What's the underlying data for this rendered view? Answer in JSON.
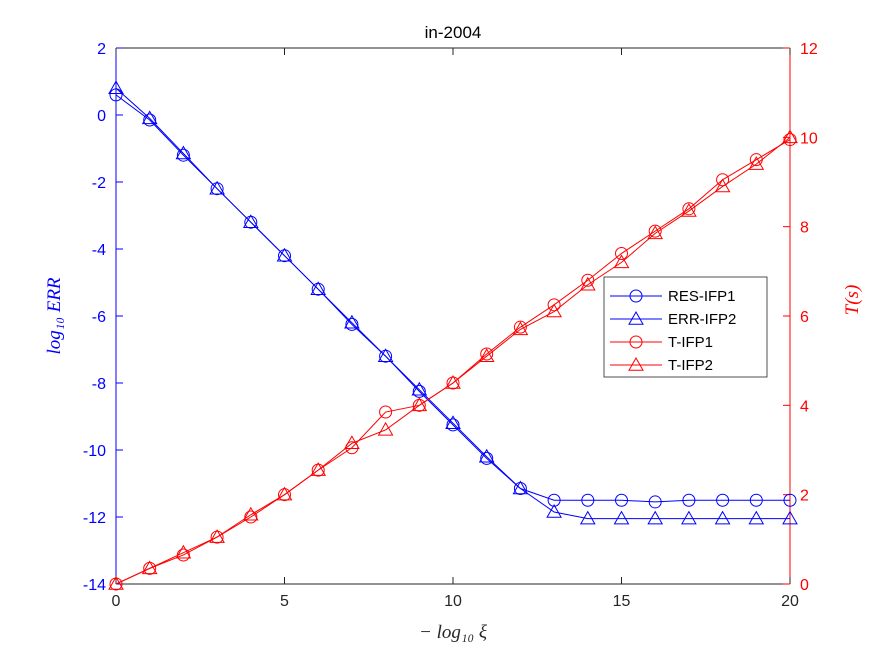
{
  "chart_data": {
    "type": "line",
    "title": "in-2004",
    "xlabel": "− log₁₀ ξ",
    "ylabel_left": "log₁₀ ERR",
    "ylabel_right": "T(s)",
    "xlim": [
      0,
      20
    ],
    "ylim_left": [
      -14,
      2
    ],
    "ylim_right": [
      0,
      12
    ],
    "x_ticks": [
      "0",
      "5",
      "10",
      "15",
      "20"
    ],
    "y_ticks_left": [
      "2",
      "0",
      "-2",
      "-4",
      "-6",
      "-8",
      "-10",
      "-12",
      "-14"
    ],
    "y_ticks_right": [
      "12",
      "10",
      "8",
      "6",
      "4",
      "2",
      "0"
    ],
    "left_axis_color": "#0000ff",
    "right_axis_color": "#ff0000",
    "grid": false,
    "legend_position": "right",
    "x": [
      0,
      1,
      2,
      3,
      4,
      5,
      6,
      7,
      8,
      9,
      10,
      11,
      12,
      13,
      14,
      15,
      16,
      17,
      18,
      19,
      20
    ],
    "series": [
      {
        "name": "RES-IFP1",
        "axis": "left",
        "color": "#0000ff",
        "marker": "circle",
        "values": [
          0.6,
          -0.15,
          -1.2,
          -2.2,
          -3.2,
          -4.2,
          -5.2,
          -6.25,
          -7.2,
          -8.25,
          -9.25,
          -10.25,
          -11.15,
          -11.5,
          -11.5,
          -11.5,
          -11.55,
          -11.5,
          -11.5,
          -11.5,
          -11.5
        ]
      },
      {
        "name": "ERR-IFP2",
        "axis": "left",
        "color": "#0000ff",
        "marker": "triangle",
        "values": [
          0.8,
          -0.1,
          -1.15,
          -2.2,
          -3.2,
          -4.2,
          -5.2,
          -6.2,
          -7.2,
          -8.2,
          -9.2,
          -10.2,
          -11.15,
          -11.85,
          -12.05,
          -12.05,
          -12.05,
          -12.05,
          -12.05,
          -12.05,
          -12.05
        ]
      },
      {
        "name": "T-IFP1",
        "axis": "right",
        "color": "#ff0000",
        "marker": "circle",
        "values": [
          0.0,
          0.35,
          0.65,
          1.05,
          1.5,
          2.0,
          2.55,
          3.05,
          3.85,
          4.0,
          4.5,
          5.15,
          5.75,
          6.25,
          6.8,
          7.4,
          7.9,
          8.4,
          9.05,
          9.5,
          9.95
        ]
      },
      {
        "name": "T-IFP2",
        "axis": "right",
        "color": "#ff0000",
        "marker": "triangle",
        "values": [
          0.0,
          0.35,
          0.7,
          1.05,
          1.55,
          2.0,
          2.55,
          3.15,
          3.45,
          4.0,
          4.5,
          5.1,
          5.7,
          6.1,
          6.7,
          7.2,
          7.85,
          8.35,
          8.9,
          9.4,
          10.0
        ]
      }
    ]
  }
}
